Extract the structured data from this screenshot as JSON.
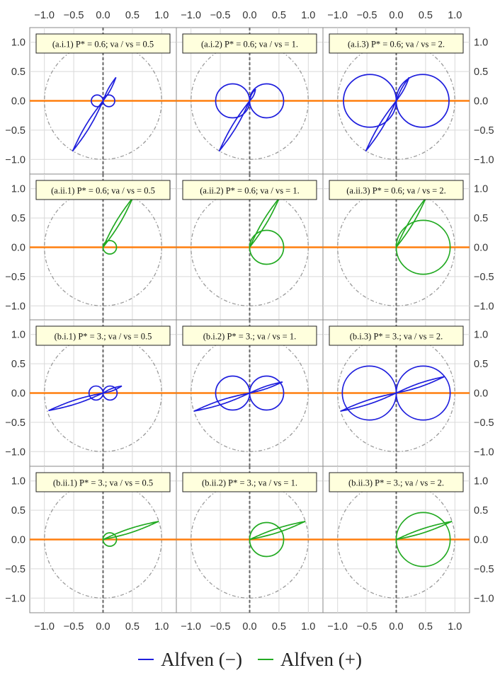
{
  "chart_data": {
    "type": "scatter",
    "layout": "4x3 grid of parametric polar-style curve panels",
    "grid": true,
    "shared_axes": {
      "xlim": [
        -1.25,
        1.25
      ],
      "ylim": [
        -1.25,
        1.25
      ],
      "x_ticks": [
        -1.0,
        -0.5,
        0.0,
        0.5,
        1.0
      ],
      "x_tick_labels": [
        "−1.0",
        "−0.5",
        "0.0",
        "0.5",
        "1.0"
      ],
      "y_ticks": [
        1.0,
        0.5,
        0.0,
        -0.5,
        -1.0
      ],
      "y_tick_labels": [
        "1.0",
        "0.5",
        "0.0",
        "−0.5",
        "−1.0"
      ],
      "reference_circle_radius": 1.0,
      "horizontal_reference_line_y": 0.0,
      "vertical_reference_line_x": 0.0
    },
    "colors": {
      "minus": "#1f1fdd",
      "plus": "#22aa22",
      "reference_horizontal": "#ff7f0e",
      "reference_vertical": "#666666",
      "reference_circle": "#999999",
      "grid": "#d9d9d9",
      "label_box_fill": "#ffffdd"
    },
    "panels": [
      {
        "label": "(a.i.1) P* = 0.6;   va / vs = 0.5",
        "series": "minus",
        "circle_diameter": 0.2,
        "line_end": [
          -0.52,
          -0.86
        ],
        "line_tip": [
          0.22,
          0.4
        ]
      },
      {
        "label": "(a.i.2) P* = 0.6;   va / vs = 1.",
        "series": "minus",
        "circle_diameter": 0.58,
        "line_end": [
          -0.52,
          -0.86
        ],
        "line_tip": [
          0.1,
          0.2
        ]
      },
      {
        "label": "(a.i.3) P* = 0.6;   va / vs = 2.",
        "series": "minus",
        "circle_diameter": 0.9,
        "line_end": [
          -0.52,
          -0.86
        ],
        "line_tip": [
          0.22,
          0.4
        ]
      },
      {
        "label": "(a.ii.1) P* = 0.6;   va / vs = 0.5",
        "series": "plus",
        "circle_diameter": 0.23,
        "line_tip": [
          0.51,
          0.85
        ]
      },
      {
        "label": "(a.ii.2) P* = 0.6;   va / vs = 1.",
        "series": "plus",
        "circle_diameter": 0.58,
        "line_tip": [
          0.51,
          0.85
        ]
      },
      {
        "label": "(a.ii.3) P* = 0.6;   va / vs = 2.",
        "series": "plus",
        "circle_diameter": 0.92,
        "line_tip": [
          0.51,
          0.85
        ]
      },
      {
        "label": "(b.i.1) P* = 3.;   va / vs = 0.5",
        "series": "minus",
        "circle_diameter": 0.24,
        "line_end": [
          -0.93,
          -0.3
        ],
        "line_tip": [
          0.32,
          0.12
        ]
      },
      {
        "label": "(b.i.2) P* = 3.;   va / vs = 1.",
        "series": "minus",
        "circle_diameter": 0.58,
        "line_end": [
          -0.95,
          -0.31
        ],
        "line_tip": [
          0.56,
          0.19
        ]
      },
      {
        "label": "(b.i.3) P* = 3.;   va / vs = 2.",
        "series": "minus",
        "circle_diameter": 0.92,
        "line_end": [
          -0.95,
          -0.31
        ],
        "line_tip": [
          0.82,
          0.28
        ]
      },
      {
        "label": "(b.ii.1) P* = 3.;   va / vs = 0.5",
        "series": "plus",
        "circle_diameter": 0.23,
        "line_tip": [
          0.95,
          0.31
        ]
      },
      {
        "label": "(b.ii.2) P* = 3.;   va / vs = 1.",
        "series": "plus",
        "circle_diameter": 0.58,
        "line_tip": [
          0.95,
          0.31
        ]
      },
      {
        "label": "(b.ii.3) P* = 3.;   va / vs = 2.",
        "series": "plus",
        "circle_diameter": 0.92,
        "line_tip": [
          0.95,
          0.31
        ]
      }
    ],
    "legend": {
      "placement": "bottom-center",
      "entries": [
        {
          "key": "minus",
          "label": "Alfven (−)",
          "color": "#1f1fdd"
        },
        {
          "key": "plus",
          "label": "Alfven (+)",
          "color": "#22aa22"
        }
      ]
    }
  }
}
